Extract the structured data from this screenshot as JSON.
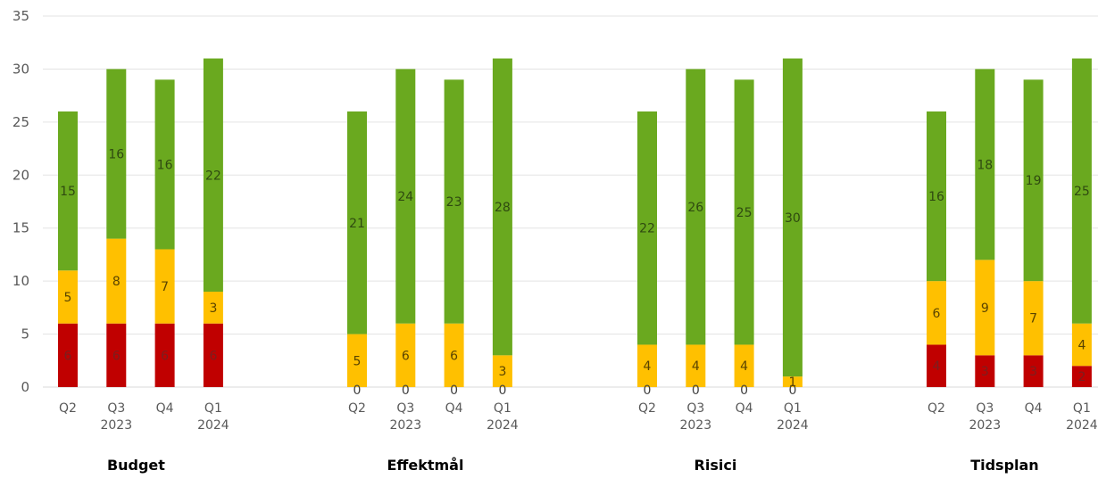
{
  "chart_data": {
    "type": "bar",
    "stacked": true,
    "ylim": [
      0,
      35
    ],
    "yticks": [
      0,
      5,
      10,
      15,
      20,
      25,
      30,
      35
    ],
    "grid": true,
    "legend": "none",
    "colors": {
      "red": "#C00000",
      "yellow": "#FFC000",
      "green": "#6AA91F"
    },
    "stack_order": [
      "red",
      "yellow",
      "green"
    ],
    "groups": [
      {
        "name": "Budget",
        "bars": [
          {
            "quarter": "Q2",
            "year": "",
            "red": 6,
            "yellow": 5,
            "green": 15
          },
          {
            "quarter": "Q3",
            "year": "2023",
            "red": 6,
            "yellow": 8,
            "green": 16
          },
          {
            "quarter": "Q4",
            "year": "",
            "red": 6,
            "yellow": 7,
            "green": 16
          },
          {
            "quarter": "Q1",
            "year": "2024",
            "red": 6,
            "yellow": 3,
            "green": 22
          }
        ]
      },
      {
        "name": "Effektmål",
        "bars": [
          {
            "quarter": "Q2",
            "year": "",
            "red": 0,
            "yellow": 5,
            "green": 21
          },
          {
            "quarter": "Q3",
            "year": "2023",
            "red": 0,
            "yellow": 6,
            "green": 24
          },
          {
            "quarter": "Q4",
            "year": "",
            "red": 0,
            "yellow": 6,
            "green": 23
          },
          {
            "quarter": "Q1",
            "year": "2024",
            "red": 0,
            "yellow": 3,
            "green": 28
          }
        ]
      },
      {
        "name": "Risici",
        "bars": [
          {
            "quarter": "Q2",
            "year": "",
            "red": 0,
            "yellow": 4,
            "green": 22
          },
          {
            "quarter": "Q3",
            "year": "2023",
            "red": 0,
            "yellow": 4,
            "green": 26
          },
          {
            "quarter": "Q4",
            "year": "",
            "red": 0,
            "yellow": 4,
            "green": 25
          },
          {
            "quarter": "Q1",
            "year": "2024",
            "red": 0,
            "yellow": 1,
            "green": 30
          }
        ]
      },
      {
        "name": "Tidsplan",
        "bars": [
          {
            "quarter": "Q2",
            "year": "",
            "red": 4,
            "yellow": 6,
            "green": 16
          },
          {
            "quarter": "Q3",
            "year": "2023",
            "red": 3,
            "yellow": 9,
            "green": 18
          },
          {
            "quarter": "Q4",
            "year": "",
            "red": 3,
            "yellow": 7,
            "green": 19
          },
          {
            "quarter": "Q1",
            "year": "2024",
            "red": 2,
            "yellow": 4,
            "green": 25
          }
        ]
      }
    ]
  }
}
